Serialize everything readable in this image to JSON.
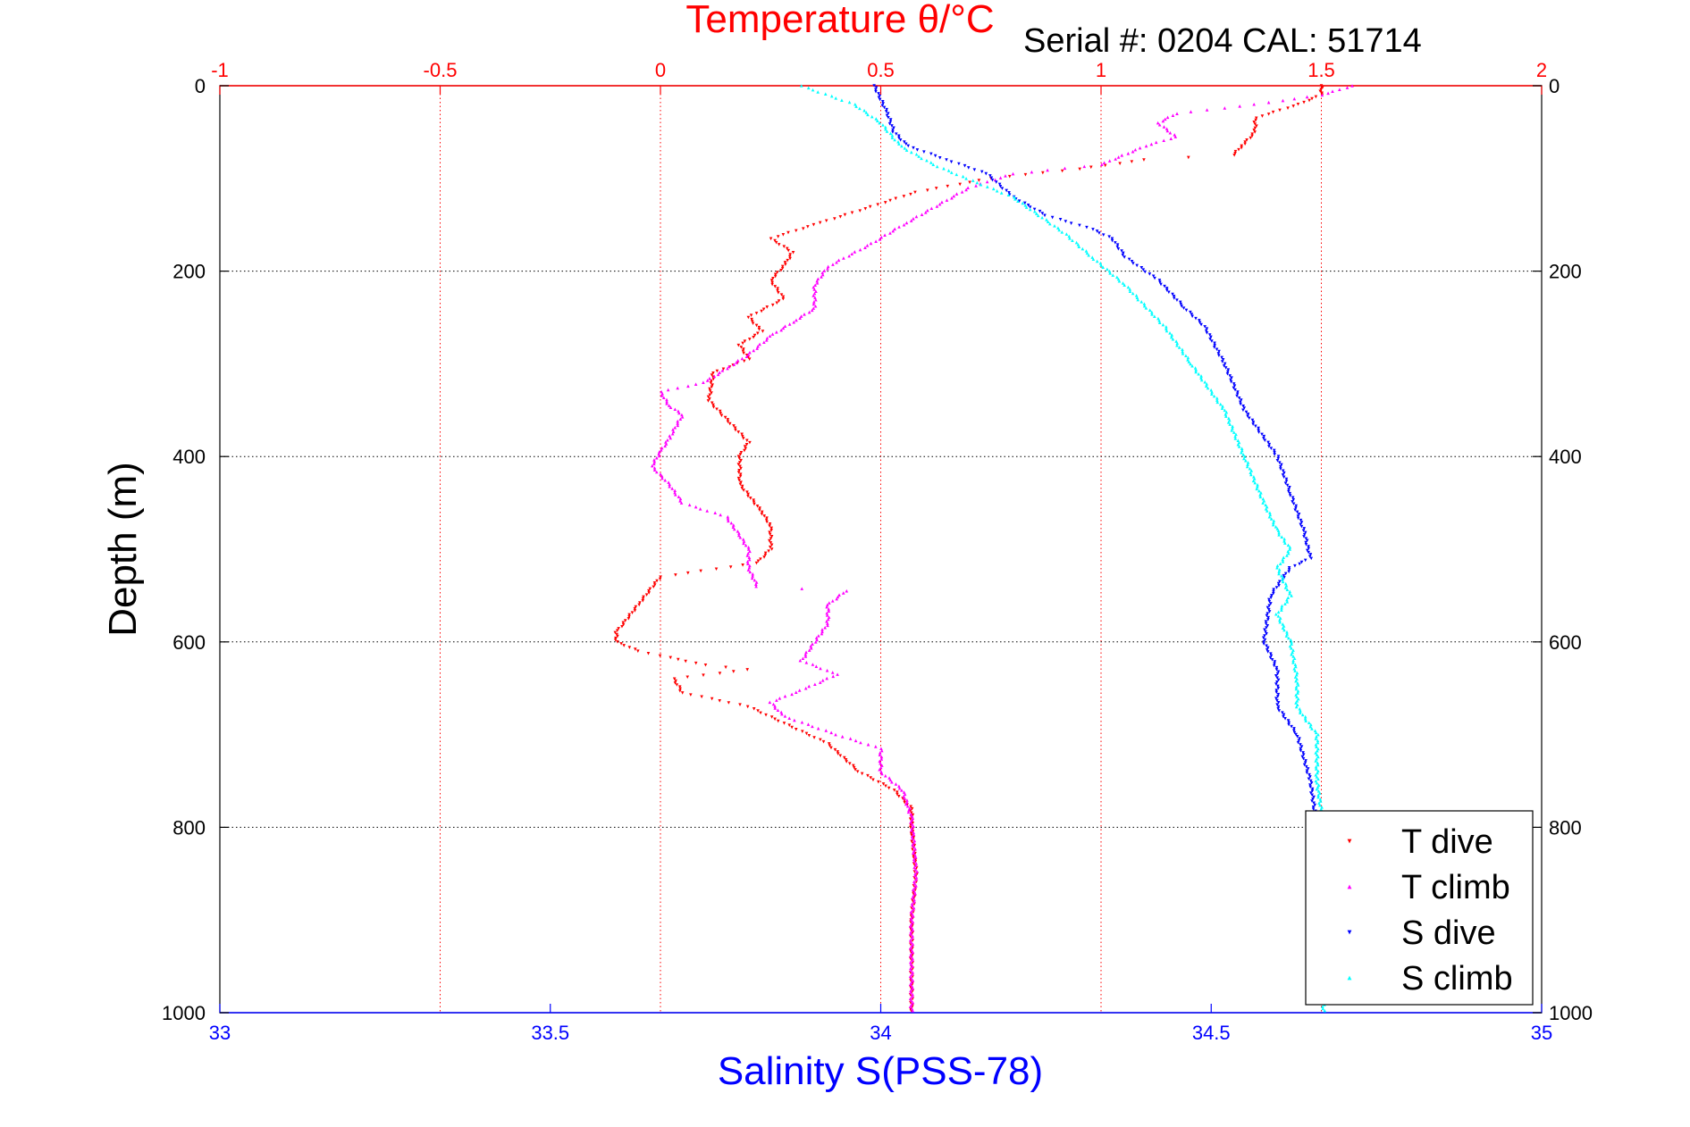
{
  "chart_data": {
    "type": "scatter",
    "title": "Temperature θ/°C",
    "subtitle": "Serial #: 0204   CAL: 51714",
    "ylabel": "Depth (m)",
    "xlabel": "Salinity S(PSS-78)",
    "top_axis": {
      "label": "Temperature θ/°C",
      "range": [
        -1,
        2
      ],
      "ticks": [
        "-1",
        "-0.5",
        "0",
        "0.5",
        "1",
        "1.5",
        "2"
      ],
      "color": "#ff0000"
    },
    "bottom_axis": {
      "label": "Salinity S(PSS-78)",
      "range": [
        33,
        35
      ],
      "ticks": [
        "33",
        "33.5",
        "34",
        "34.5",
        "35"
      ],
      "color": "#0000ff"
    },
    "left_axis": {
      "range": [
        0,
        1000
      ],
      "reversed": true,
      "ticks": [
        "0",
        "200",
        "400",
        "600",
        "800",
        "1000"
      ]
    },
    "right_axis": {
      "ticks": [
        "0",
        "200",
        "400",
        "600",
        "800",
        "1000"
      ]
    },
    "grid": true,
    "legend_position": "bottom-right",
    "series": [
      {
        "name": "T dive",
        "axis": "temperature",
        "color": "#ff0000",
        "marker": "down-triangle",
        "points": [
          [
            1.5,
            0
          ],
          [
            1.5,
            10
          ],
          [
            1.45,
            20
          ],
          [
            1.35,
            35
          ],
          [
            1.35,
            50
          ],
          [
            1.32,
            65
          ],
          [
            1.3,
            75
          ],
          [
            1.1,
            80
          ],
          [
            0.95,
            90
          ],
          [
            0.75,
            100
          ],
          [
            0.58,
            115
          ],
          [
            0.45,
            135
          ],
          [
            0.35,
            150
          ],
          [
            0.25,
            165
          ],
          [
            0.3,
            180
          ],
          [
            0.28,
            195
          ],
          [
            0.25,
            210
          ],
          [
            0.28,
            230
          ],
          [
            0.2,
            250
          ],
          [
            0.23,
            265
          ],
          [
            0.18,
            280
          ],
          [
            0.2,
            295
          ],
          [
            0.12,
            310
          ],
          [
            0.11,
            340
          ],
          [
            0.2,
            385
          ],
          [
            0.18,
            400
          ],
          [
            0.18,
            430
          ],
          [
            0.23,
            460
          ],
          [
            0.25,
            475
          ],
          [
            0.25,
            500
          ],
          [
            0.22,
            515
          ],
          [
            0.0,
            530
          ],
          [
            -0.05,
            560
          ],
          [
            -0.1,
            590
          ],
          [
            -0.1,
            600
          ],
          [
            -0.05,
            610
          ],
          [
            0.0,
            615
          ],
          [
            0.1,
            625
          ],
          [
            0.2,
            630
          ],
          [
            0.03,
            640
          ],
          [
            0.05,
            655
          ],
          [
            0.2,
            670
          ],
          [
            0.38,
            710
          ],
          [
            0.45,
            740
          ],
          [
            0.53,
            760
          ],
          [
            0.57,
            780
          ],
          [
            0.57,
            800
          ],
          [
            0.58,
            850
          ],
          [
            0.57,
            900
          ],
          [
            0.57,
            950
          ],
          [
            0.57,
            1000
          ]
        ]
      },
      {
        "name": "T climb",
        "axis": "temperature",
        "color": "#ff00ff",
        "marker": "up-triangle",
        "points": [
          [
            1.57,
            0
          ],
          [
            1.5,
            10
          ],
          [
            1.35,
            20
          ],
          [
            1.17,
            30
          ],
          [
            1.13,
            40
          ],
          [
            1.17,
            55
          ],
          [
            1.1,
            65
          ],
          [
            1.05,
            75
          ],
          [
            1.0,
            85
          ],
          [
            0.8,
            95
          ],
          [
            0.7,
            110
          ],
          [
            0.55,
            150
          ],
          [
            0.48,
            170
          ],
          [
            0.38,
            195
          ],
          [
            0.35,
            215
          ],
          [
            0.35,
            240
          ],
          [
            0.3,
            255
          ],
          [
            0.25,
            270
          ],
          [
            0.2,
            290
          ],
          [
            0.15,
            305
          ],
          [
            0.1,
            320
          ],
          [
            0.0,
            330
          ],
          [
            0.02,
            345
          ],
          [
            0.05,
            355
          ],
          [
            0.02,
            380
          ],
          [
            0.0,
            395
          ],
          [
            -0.02,
            410
          ],
          [
            0.02,
            430
          ],
          [
            0.05,
            450
          ],
          [
            0.15,
            465
          ],
          [
            0.18,
            485
          ],
          [
            0.2,
            500
          ],
          [
            0.2,
            520
          ],
          [
            0.22,
            540
          ],
          [
            0.42,
            545
          ],
          [
            0.38,
            560
          ],
          [
            0.38,
            580
          ],
          [
            0.35,
            600
          ],
          [
            0.32,
            620
          ],
          [
            0.4,
            635
          ],
          [
            0.33,
            650
          ],
          [
            0.25,
            665
          ],
          [
            0.28,
            680
          ],
          [
            0.4,
            700
          ],
          [
            0.5,
            715
          ],
          [
            0.5,
            740
          ],
          [
            0.55,
            760
          ],
          [
            0.57,
            790
          ],
          [
            0.58,
            850
          ],
          [
            0.57,
            900
          ],
          [
            0.57,
            950
          ],
          [
            0.57,
            1000
          ]
        ]
      },
      {
        "name": "S dive",
        "axis": "salinity",
        "color": "#0000ff",
        "marker": "down-triangle",
        "points": [
          [
            33.99,
            0
          ],
          [
            34.01,
            30
          ],
          [
            34.02,
            50
          ],
          [
            34.04,
            65
          ],
          [
            34.1,
            80
          ],
          [
            34.16,
            95
          ],
          [
            34.2,
            120
          ],
          [
            34.25,
            140
          ],
          [
            34.32,
            155
          ],
          [
            34.35,
            165
          ],
          [
            34.37,
            185
          ],
          [
            34.42,
            210
          ],
          [
            34.46,
            240
          ],
          [
            34.49,
            260
          ],
          [
            34.52,
            300
          ],
          [
            34.55,
            350
          ],
          [
            34.6,
            400
          ],
          [
            34.62,
            440
          ],
          [
            34.64,
            480
          ],
          [
            34.65,
            510
          ],
          [
            34.62,
            520
          ],
          [
            34.59,
            550
          ],
          [
            34.58,
            600
          ],
          [
            34.6,
            630
          ],
          [
            34.6,
            670
          ],
          [
            34.63,
            700
          ],
          [
            34.65,
            750
          ],
          [
            34.66,
            800
          ]
        ]
      },
      {
        "name": "S climb",
        "axis": "salinity",
        "color": "#00ffff",
        "marker": "up-triangle",
        "points": [
          [
            33.88,
            0
          ],
          [
            33.96,
            20
          ],
          [
            34.0,
            40
          ],
          [
            34.03,
            65
          ],
          [
            34.08,
            85
          ],
          [
            34.13,
            100
          ],
          [
            34.2,
            120
          ],
          [
            34.24,
            140
          ],
          [
            34.28,
            160
          ],
          [
            34.32,
            185
          ],
          [
            34.37,
            215
          ],
          [
            34.43,
            260
          ],
          [
            34.47,
            300
          ],
          [
            34.52,
            350
          ],
          [
            34.55,
            400
          ],
          [
            34.58,
            450
          ],
          [
            34.6,
            480
          ],
          [
            34.62,
            500
          ],
          [
            34.6,
            520
          ],
          [
            34.62,
            550
          ],
          [
            34.6,
            570
          ],
          [
            34.62,
            600
          ],
          [
            34.63,
            640
          ],
          [
            34.63,
            670
          ],
          [
            34.66,
            700
          ],
          [
            34.66,
            750
          ],
          [
            34.67,
            800
          ],
          [
            34.67,
            850
          ],
          [
            34.67,
            900
          ],
          [
            34.67,
            950
          ],
          [
            34.67,
            1000
          ]
        ]
      }
    ]
  }
}
